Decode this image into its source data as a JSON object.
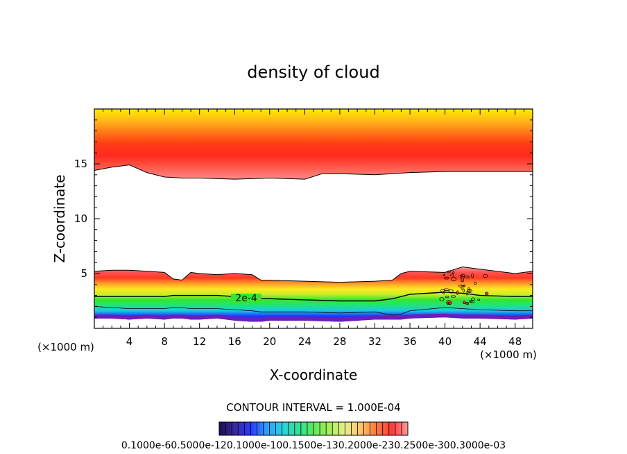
{
  "chart_data": {
    "type": "heatmap",
    "title": "density of cloud",
    "xlabel": "X-coordinate",
    "ylabel": "Z-coordinate",
    "x_unit_left": "(×1000 m)",
    "x_unit_right": "(×1000 m)",
    "xlim": [
      0,
      50
    ],
    "ylim": [
      0,
      20
    ],
    "x_ticks": [
      4,
      8,
      12,
      16,
      20,
      24,
      28,
      32,
      36,
      40,
      44,
      48
    ],
    "x_tick_labels": [
      "4",
      "8",
      "12",
      "16",
      "20",
      "24",
      "28",
      "32",
      "36",
      "40",
      "44",
      "48"
    ],
    "y_ticks": [
      5,
      10,
      15
    ],
    "y_tick_labels": [
      "5",
      "10",
      "15"
    ],
    "contour_label": "2e-4",
    "contour_interval_text": "CONTOUR INTERVAL = 1.000E-04",
    "colorbar_labels_text": "0.1000e-60.5000e-120.1000e-100.1500e-130.2000e-230.2500e-300.3000e-03",
    "colorbar_range": [
      0.0,
      0.0003
    ],
    "upper_cloud_layer": {
      "top_km": 20,
      "base_x": [
        0,
        2,
        4,
        6,
        8,
        10,
        12,
        16,
        20,
        24,
        26,
        28,
        32,
        36,
        40,
        44,
        48,
        50
      ],
      "base_z": [
        14.4,
        14.7,
        14.9,
        14.2,
        13.8,
        13.7,
        13.7,
        13.6,
        13.7,
        13.6,
        14.1,
        14.1,
        14.0,
        14.2,
        14.3,
        14.3,
        14.3,
        14.3
      ],
      "peak_z": 16.0
    },
    "lower_cloud_layer": {
      "x": [
        0,
        2,
        4,
        6,
        8,
        9,
        10,
        11,
        12,
        14,
        16,
        18,
        19,
        20,
        24,
        28,
        32,
        34,
        35,
        36,
        40,
        42,
        44,
        48,
        50
      ],
      "top_z": [
        5.2,
        5.3,
        5.3,
        5.2,
        5.1,
        4.5,
        4.4,
        5.1,
        5.0,
        4.9,
        5.0,
        4.9,
        4.4,
        4.4,
        4.3,
        4.2,
        4.3,
        4.4,
        5.0,
        5.2,
        5.1,
        5.6,
        5.4,
        5.0,
        5.2
      ],
      "contour_2e4_z": [
        2.9,
        2.9,
        2.9,
        2.9,
        2.9,
        3.0,
        3.0,
        3.0,
        3.0,
        3.0,
        2.9,
        2.8,
        2.7,
        2.7,
        2.6,
        2.5,
        2.5,
        2.7,
        2.9,
        3.1,
        3.3,
        3.2,
        3.0,
        2.9,
        2.9
      ],
      "contour_low_z": [
        2.0,
        1.9,
        1.8,
        1.8,
        1.8,
        1.9,
        1.9,
        1.8,
        1.8,
        1.8,
        1.7,
        1.6,
        1.5,
        1.5,
        1.5,
        1.4,
        1.5,
        1.2,
        1.3,
        1.6,
        1.9,
        1.8,
        1.7,
        1.6,
        1.6
      ],
      "base_z": [
        0.9,
        0.9,
        0.8,
        0.9,
        0.8,
        0.9,
        0.9,
        0.8,
        0.8,
        0.9,
        0.7,
        0.6,
        0.6,
        0.7,
        0.7,
        0.6,
        0.8,
        0.8,
        0.8,
        0.9,
        1.0,
        0.9,
        0.9,
        0.8,
        0.9
      ]
    }
  },
  "colors": {
    "lower_stops": [
      "#6a1fb8",
      "#2330ff",
      "#19c8e6",
      "#1fe57a",
      "#32e632",
      "#c8ee28",
      "#ffe61e",
      "#ff9a2a",
      "#ff3a22",
      "#ff5252",
      "#ff9c9c"
    ],
    "upper_stops": [
      "#ff8c8c",
      "#ff5a4a",
      "#ff2a1e",
      "#ff3a14",
      "#ff7818",
      "#ffb818",
      "#ffec00"
    ],
    "colorbar": [
      "#1a1050",
      "#3a28a0",
      "#2a3aff",
      "#2a9cff",
      "#2acfe0",
      "#2ae59a",
      "#5aea5a",
      "#a8ee5a",
      "#e8ee8a",
      "#ffc46a",
      "#ff7a3a",
      "#ff3a3a",
      "#ff9a9a"
    ]
  }
}
